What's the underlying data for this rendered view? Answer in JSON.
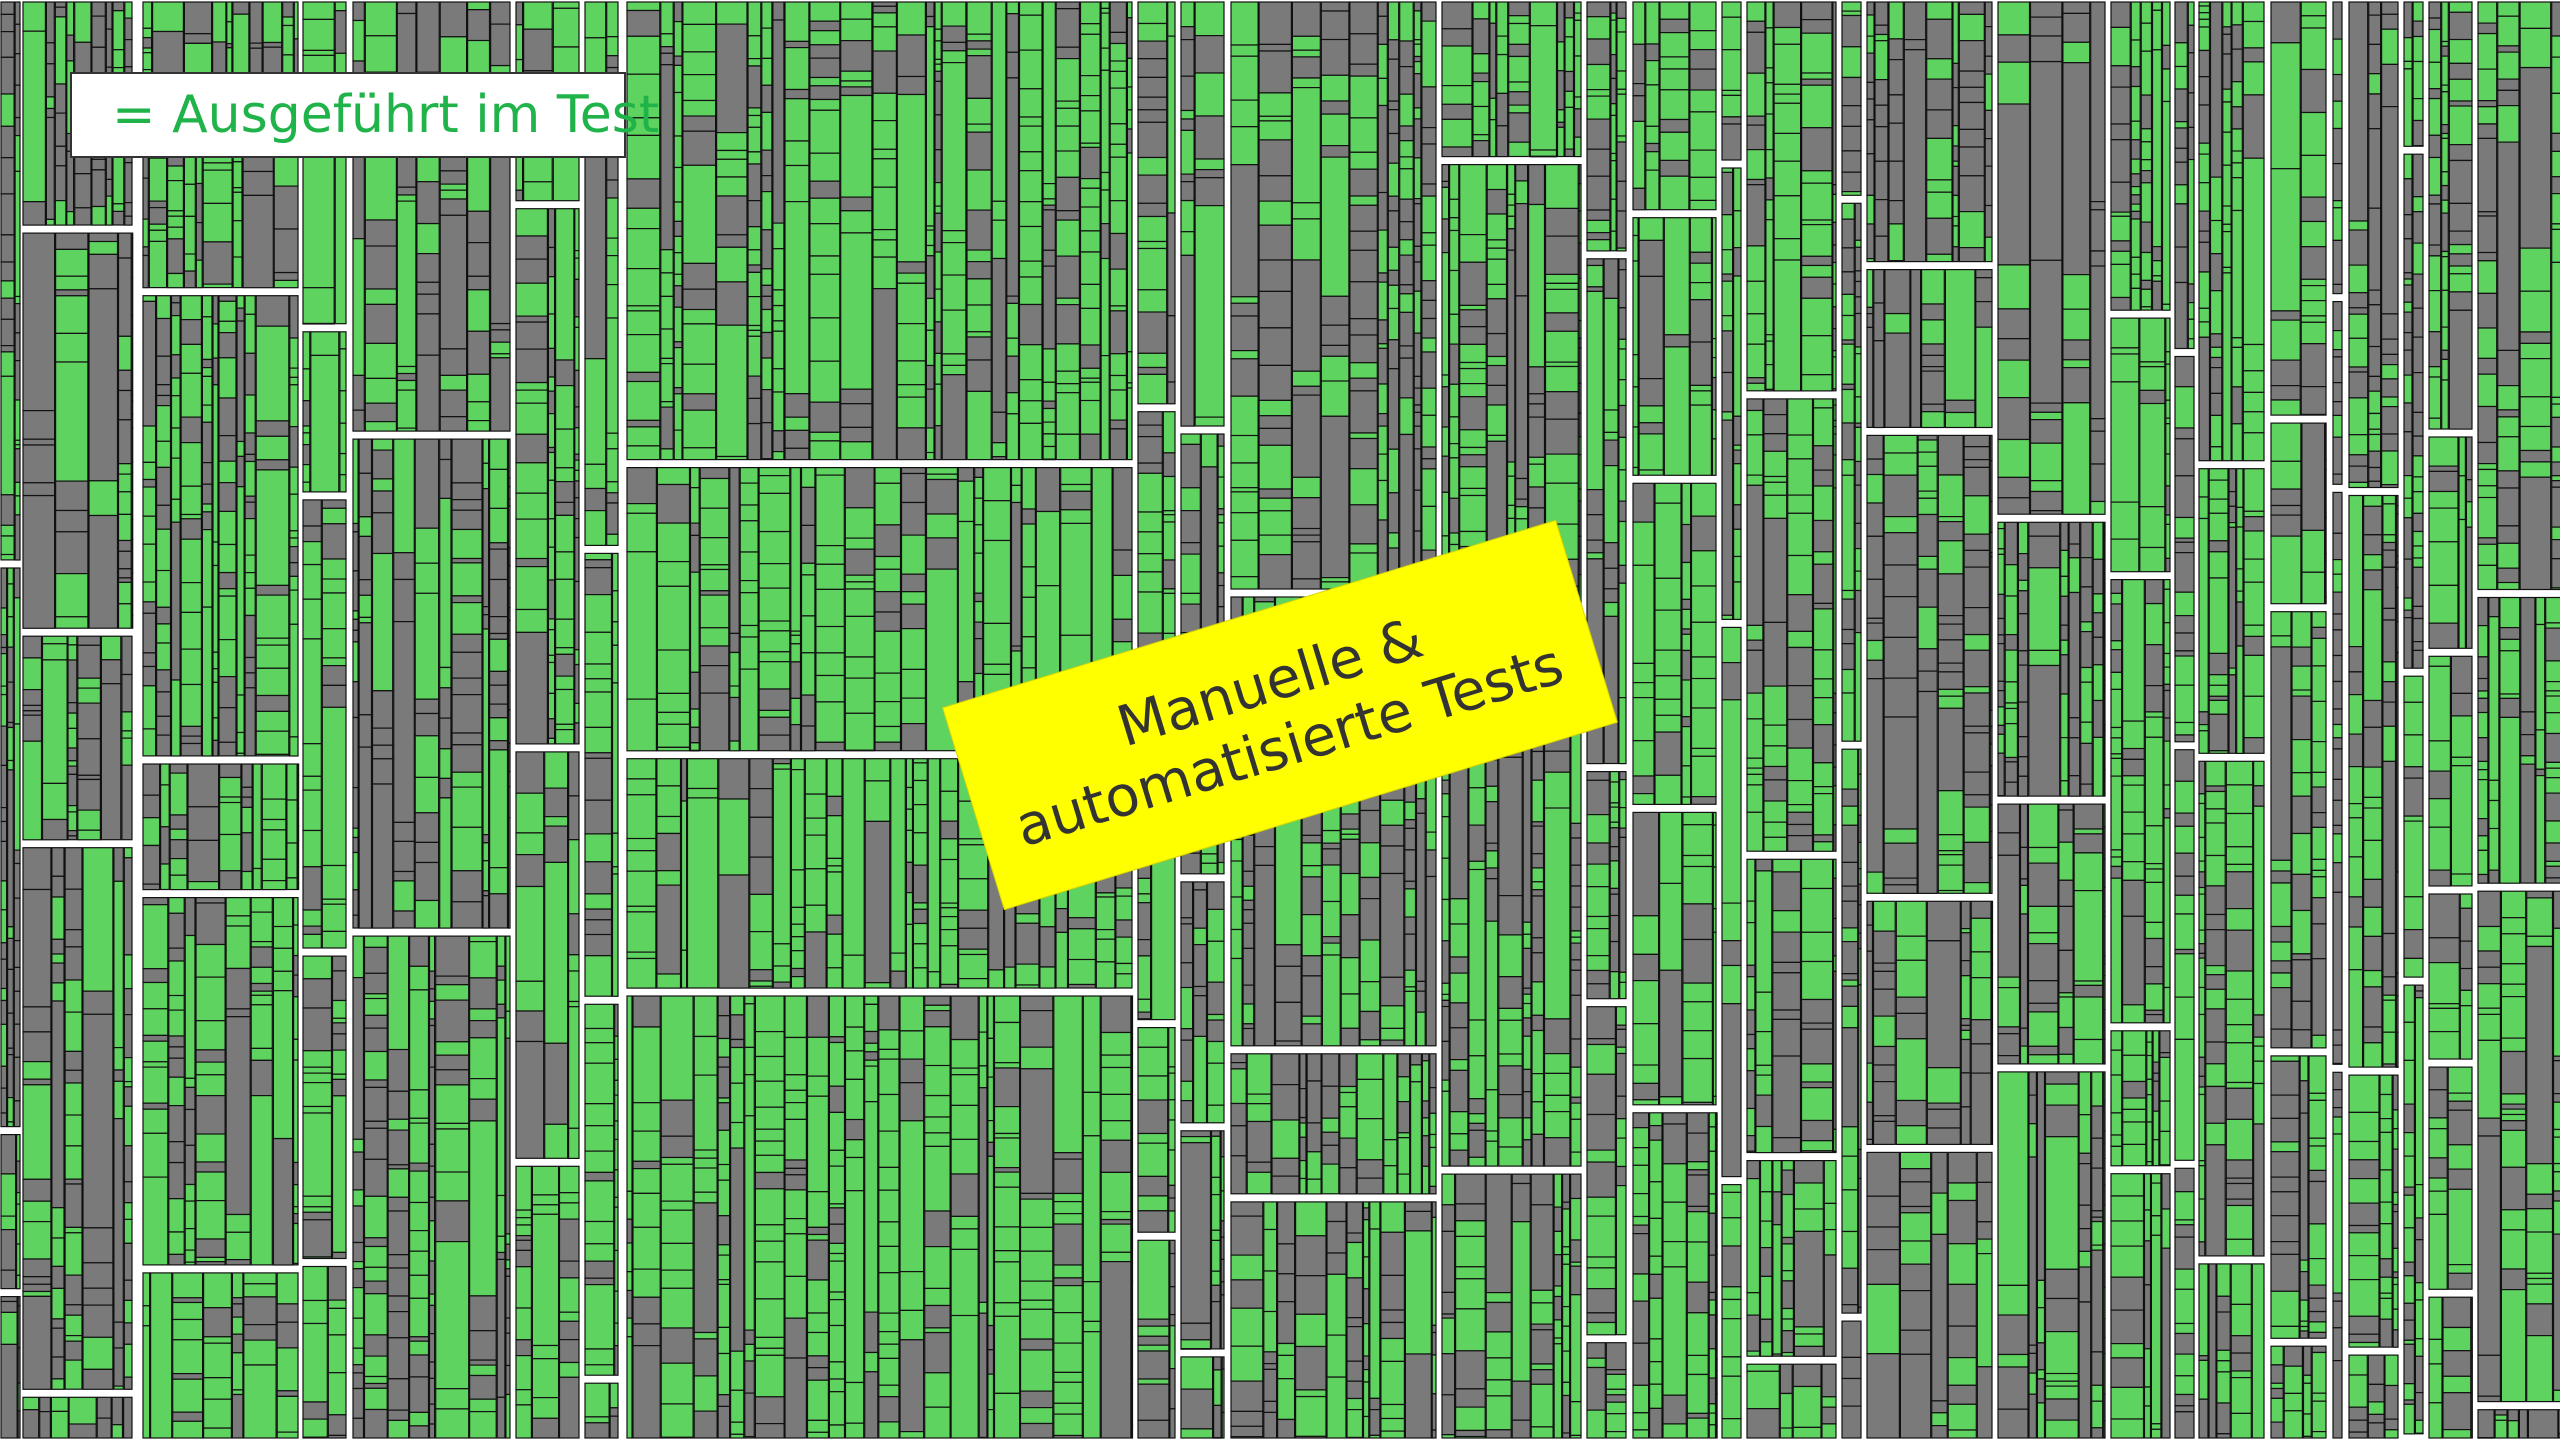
{
  "legend": {
    "marker": "dot-icon",
    "text": "= Ausgeführt im Test"
  },
  "banner": {
    "line1": "Manuelle &",
    "line2": "automatisierte Tests"
  },
  "colors": {
    "executed": "#5fd35f",
    "not_executed": "#7a7a7a",
    "cell_border": "#111111",
    "block_border": "#ffffff",
    "legend_text": "#1fb34a",
    "banner_bg": "#ffff00",
    "banner_text": "#333333"
  }
}
